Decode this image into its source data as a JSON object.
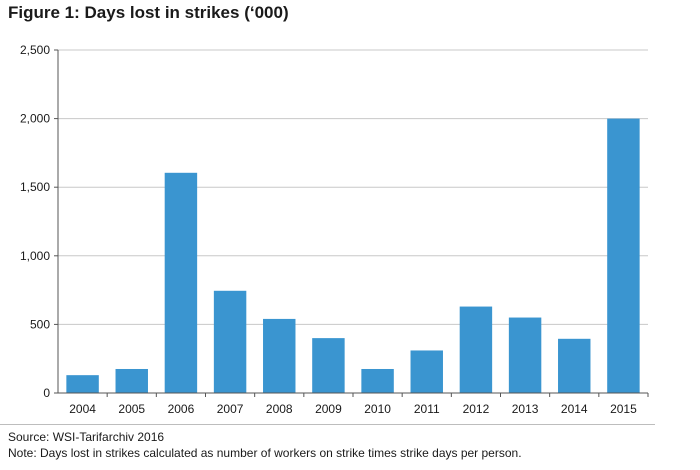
{
  "chart_data": {
    "type": "bar",
    "title": "Figure 1: Days lost in strikes (‘000)",
    "xlabel": "",
    "ylabel": "",
    "categories": [
      "2004",
      "2005",
      "2006",
      "2007",
      "2008",
      "2009",
      "2010",
      "2011",
      "2012",
      "2013",
      "2014",
      "2015"
    ],
    "values": [
      130,
      175,
      1605,
      745,
      540,
      400,
      175,
      310,
      630,
      550,
      395,
      2000
    ],
    "ylim": [
      0,
      2500
    ],
    "yticks": [
      0,
      500,
      1000,
      1500,
      2000,
      2500
    ],
    "ytick_labels": [
      "0",
      "500",
      "1,000",
      "1,500",
      "2,000",
      "2,500"
    ],
    "bar_color": "#3a95d0",
    "grid": true,
    "legend": "none"
  },
  "footer": {
    "source": "Source: WSI-Tarifarchiv 2016",
    "note": "Note: Days lost in strikes calculated as number of workers on strike times strike days per person."
  }
}
